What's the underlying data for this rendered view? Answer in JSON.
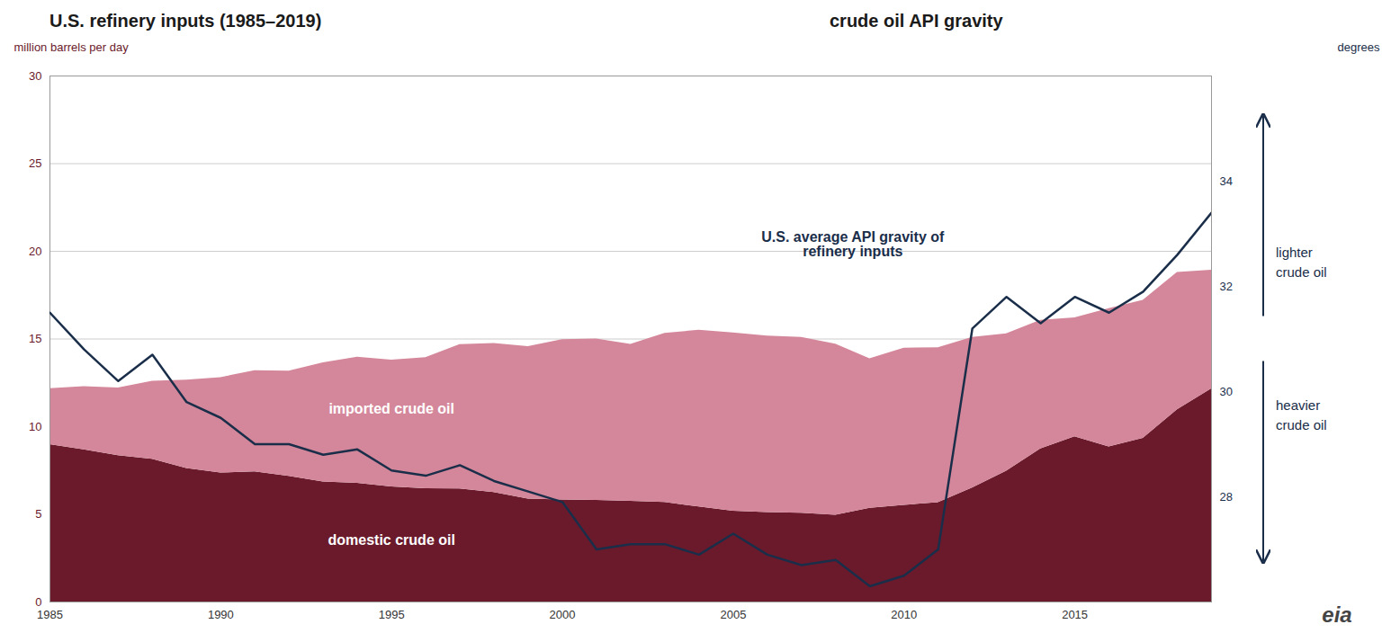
{
  "chart_data": {
    "type": "area",
    "title": "U.S. refinery inputs (1985–2019)",
    "subtitle": "crude oil API gravity",
    "ylabel": "million barrels per day",
    "y2label": "degrees",
    "stacked": true,
    "grid": true,
    "x": [
      1985,
      1986,
      1987,
      1988,
      1989,
      1990,
      1991,
      1992,
      1993,
      1994,
      1995,
      1996,
      1997,
      1998,
      1999,
      2000,
      2001,
      2002,
      2003,
      2004,
      2005,
      2006,
      2007,
      2008,
      2009,
      2010,
      2011,
      2012,
      2013,
      2014,
      2015,
      2016,
      2017,
      2018,
      2019
    ],
    "series": [
      {
        "type": "area",
        "color": "#6b1a2b",
        "values": [
          8.97,
          8.68,
          8.34,
          8.14,
          7.61,
          7.36,
          7.42,
          7.17,
          6.85,
          6.77,
          6.56,
          6.46,
          6.45,
          6.25,
          5.87,
          5.82,
          5.8,
          5.74,
          5.68,
          5.42,
          5.18,
          5.1,
          5.06,
          4.95,
          5.35,
          5.51,
          5.67,
          6.5,
          7.46,
          8.73,
          9.42,
          8.84,
          9.33,
          10.96,
          12.15
        ]
      },
      {
        "type": "area",
        "color": "#d4879a",
        "values": [
          3.2,
          3.6,
          3.87,
          4.45,
          5.05,
          5.44,
          5.77,
          6.0,
          6.79,
          7.19,
          7.23,
          7.48,
          8.23,
          8.49,
          8.7,
          9.14,
          9.2,
          8.95,
          9.64,
          10.08,
          10.17,
          10.07,
          10.03,
          9.76,
          8.52,
          8.97,
          8.83,
          8.59,
          7.84,
          7.34,
          6.79,
          7.89,
          7.88,
          7.84,
          6.77
        ]
      },
      {
        "type": "line",
        "axis": "y2",
        "color": "#1a2e4a",
        "values": [
          31.5,
          30.8,
          30.2,
          30.7,
          29.8,
          29.5,
          29.0,
          29.0,
          28.8,
          28.9,
          28.5,
          28.4,
          28.6,
          28.3,
          28.1,
          27.9,
          27.0,
          27.1,
          27.1,
          26.9,
          27.3,
          26.9,
          26.7,
          26.8,
          26.3,
          26.5,
          27.0,
          31.2,
          31.8,
          31.3,
          31.8,
          31.5,
          31.9,
          32.6,
          33.4
        ]
      }
    ],
    "xlim": [
      1985,
      2019
    ],
    "xticks": [
      1985,
      1990,
      1995,
      2000,
      2005,
      2010,
      2015
    ],
    "ylim": [
      0,
      30
    ],
    "yticks": [
      0,
      5,
      10,
      15,
      20,
      25,
      30
    ],
    "y2lim": [
      26,
      36
    ],
    "y2ticks": [
      28,
      30,
      32,
      34
    ],
    "annotations": [
      {
        "text": "imported crude oil",
        "x": 1995,
        "y": 11.0
      },
      {
        "text": "domestic crude oil",
        "x": 1995,
        "y": 3.5
      },
      {
        "text": "U.S. average API gravity of\nrefinery inputs",
        "x": 2008.5,
        "y": 32.8,
        "axis": "y2"
      },
      {
        "text": "lighter\ncrude oil"
      },
      {
        "text": "heavier\ncrude oil"
      },
      {
        "text": "eia"
      }
    ]
  }
}
